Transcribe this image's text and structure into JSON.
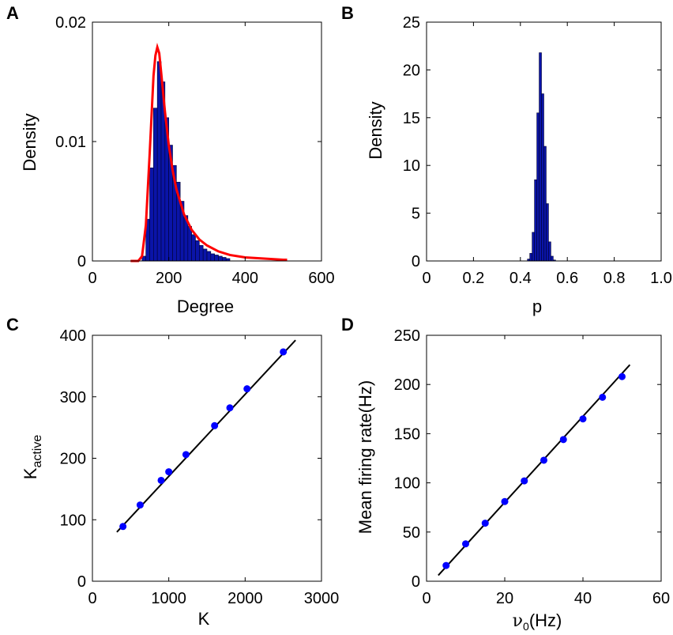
{
  "chart_data": [
    {
      "panel": "A",
      "type": "histogram",
      "xlabel": "Degree",
      "ylabel": "Density",
      "xlim": [
        0,
        600
      ],
      "ylim": [
        0,
        0.02
      ],
      "xticks": [
        "0",
        "200",
        "400",
        "600"
      ],
      "yticks": [
        "0",
        "0.01",
        "0.02"
      ],
      "grid": false,
      "colors": {
        "bars": "#0a14a8",
        "fit_curve": "#ff0000"
      },
      "bin_width": 10,
      "bins": [
        {
          "x": 130,
          "y": 0.0004
        },
        {
          "x": 140,
          "y": 0.0035
        },
        {
          "x": 150,
          "y": 0.0078
        },
        {
          "x": 160,
          "y": 0.0128
        },
        {
          "x": 170,
          "y": 0.0167
        },
        {
          "x": 180,
          "y": 0.015
        },
        {
          "x": 190,
          "y": 0.012
        },
        {
          "x": 200,
          "y": 0.0097
        },
        {
          "x": 210,
          "y": 0.008
        },
        {
          "x": 220,
          "y": 0.0066
        },
        {
          "x": 230,
          "y": 0.005
        },
        {
          "x": 240,
          "y": 0.0038
        },
        {
          "x": 250,
          "y": 0.0029
        },
        {
          "x": 260,
          "y": 0.0022
        },
        {
          "x": 270,
          "y": 0.0017
        },
        {
          "x": 280,
          "y": 0.0013
        },
        {
          "x": 290,
          "y": 0.001
        },
        {
          "x": 300,
          "y": 0.0008
        },
        {
          "x": 310,
          "y": 0.0006
        },
        {
          "x": 320,
          "y": 0.0005
        },
        {
          "x": 330,
          "y": 0.0004
        },
        {
          "x": 340,
          "y": 0.0003
        },
        {
          "x": 350,
          "y": 0.0002
        }
      ],
      "fit_curve": [
        [
          100,
          0.0
        ],
        [
          120,
          0.0
        ],
        [
          130,
          0.0004
        ],
        [
          140,
          0.003
        ],
        [
          150,
          0.009
        ],
        [
          160,
          0.0155
        ],
        [
          165,
          0.0172
        ],
        [
          170,
          0.0179
        ],
        [
          175,
          0.0174
        ],
        [
          180,
          0.0158
        ],
        [
          190,
          0.0125
        ],
        [
          200,
          0.0097
        ],
        [
          210,
          0.0076
        ],
        [
          220,
          0.006
        ],
        [
          240,
          0.0039
        ],
        [
          260,
          0.0026
        ],
        [
          280,
          0.0018
        ],
        [
          300,
          0.0013
        ],
        [
          330,
          0.0008
        ],
        [
          360,
          0.0005
        ],
        [
          400,
          0.0003
        ],
        [
          450,
          0.0002
        ],
        [
          500,
          0.0001
        ],
        [
          510,
          0.0001
        ]
      ]
    },
    {
      "panel": "B",
      "type": "histogram",
      "xlabel": "p",
      "ylabel": "Density",
      "xlim": [
        0,
        1.0
      ],
      "ylim": [
        0,
        25
      ],
      "xticks": [
        "0",
        "0.2",
        "0.4",
        "0.6",
        "0.8",
        "1.0"
      ],
      "yticks": [
        "0",
        "5",
        "10",
        "15",
        "20",
        "25"
      ],
      "grid": false,
      "colors": {
        "bars": "#0a14a8"
      },
      "bin_width": 0.01,
      "bins": [
        {
          "x": 0.43,
          "y": 0.2
        },
        {
          "x": 0.44,
          "y": 0.8
        },
        {
          "x": 0.45,
          "y": 3.0
        },
        {
          "x": 0.46,
          "y": 8.5
        },
        {
          "x": 0.47,
          "y": 15.5
        },
        {
          "x": 0.48,
          "y": 21.8
        },
        {
          "x": 0.49,
          "y": 17.5
        },
        {
          "x": 0.5,
          "y": 12.0
        },
        {
          "x": 0.51,
          "y": 6.0
        },
        {
          "x": 0.52,
          "y": 2.0
        },
        {
          "x": 0.53,
          "y": 0.5
        },
        {
          "x": 0.54,
          "y": 0.1
        }
      ]
    },
    {
      "panel": "C",
      "type": "scatter",
      "xlabel": "K",
      "ylabel": "K",
      "ylabel_sub": "active",
      "xlim": [
        0,
        3000
      ],
      "ylim": [
        0,
        400
      ],
      "xticks": [
        "0",
        "1000",
        "2000",
        "3000"
      ],
      "yticks": [
        "0",
        "100",
        "200",
        "300",
        "400"
      ],
      "grid": false,
      "colors": {
        "points": "#0000ff",
        "fit_line": "#000000"
      },
      "points": [
        [
          400,
          89
        ],
        [
          625,
          124
        ],
        [
          900,
          164
        ],
        [
          1000,
          178
        ],
        [
          1225,
          206
        ],
        [
          1600,
          253
        ],
        [
          1800,
          282
        ],
        [
          2025,
          313
        ],
        [
          2500,
          373
        ]
      ],
      "fit_line": [
        [
          320,
          80
        ],
        [
          2660,
          392
        ]
      ]
    },
    {
      "panel": "D",
      "type": "scatter",
      "xlabel": "(Hz)",
      "xlabel_greek": "ν",
      "xlabel_sub": "0",
      "ylabel": "Mean firing rate(Hz)",
      "xlim": [
        0,
        60
      ],
      "ylim": [
        0,
        250
      ],
      "xticks": [
        "0",
        "20",
        "40",
        "60"
      ],
      "yticks": [
        "0",
        "50",
        "100",
        "150",
        "200",
        "250"
      ],
      "grid": false,
      "colors": {
        "points": "#0000ff",
        "fit_line": "#000000"
      },
      "points": [
        [
          5,
          16
        ],
        [
          10,
          38
        ],
        [
          15,
          59
        ],
        [
          20,
          81
        ],
        [
          25,
          102
        ],
        [
          30,
          123
        ],
        [
          35,
          144
        ],
        [
          40,
          165
        ],
        [
          45,
          187
        ],
        [
          50,
          208
        ]
      ],
      "fit_line": [
        [
          3,
          6
        ],
        [
          52,
          220
        ]
      ]
    }
  ]
}
